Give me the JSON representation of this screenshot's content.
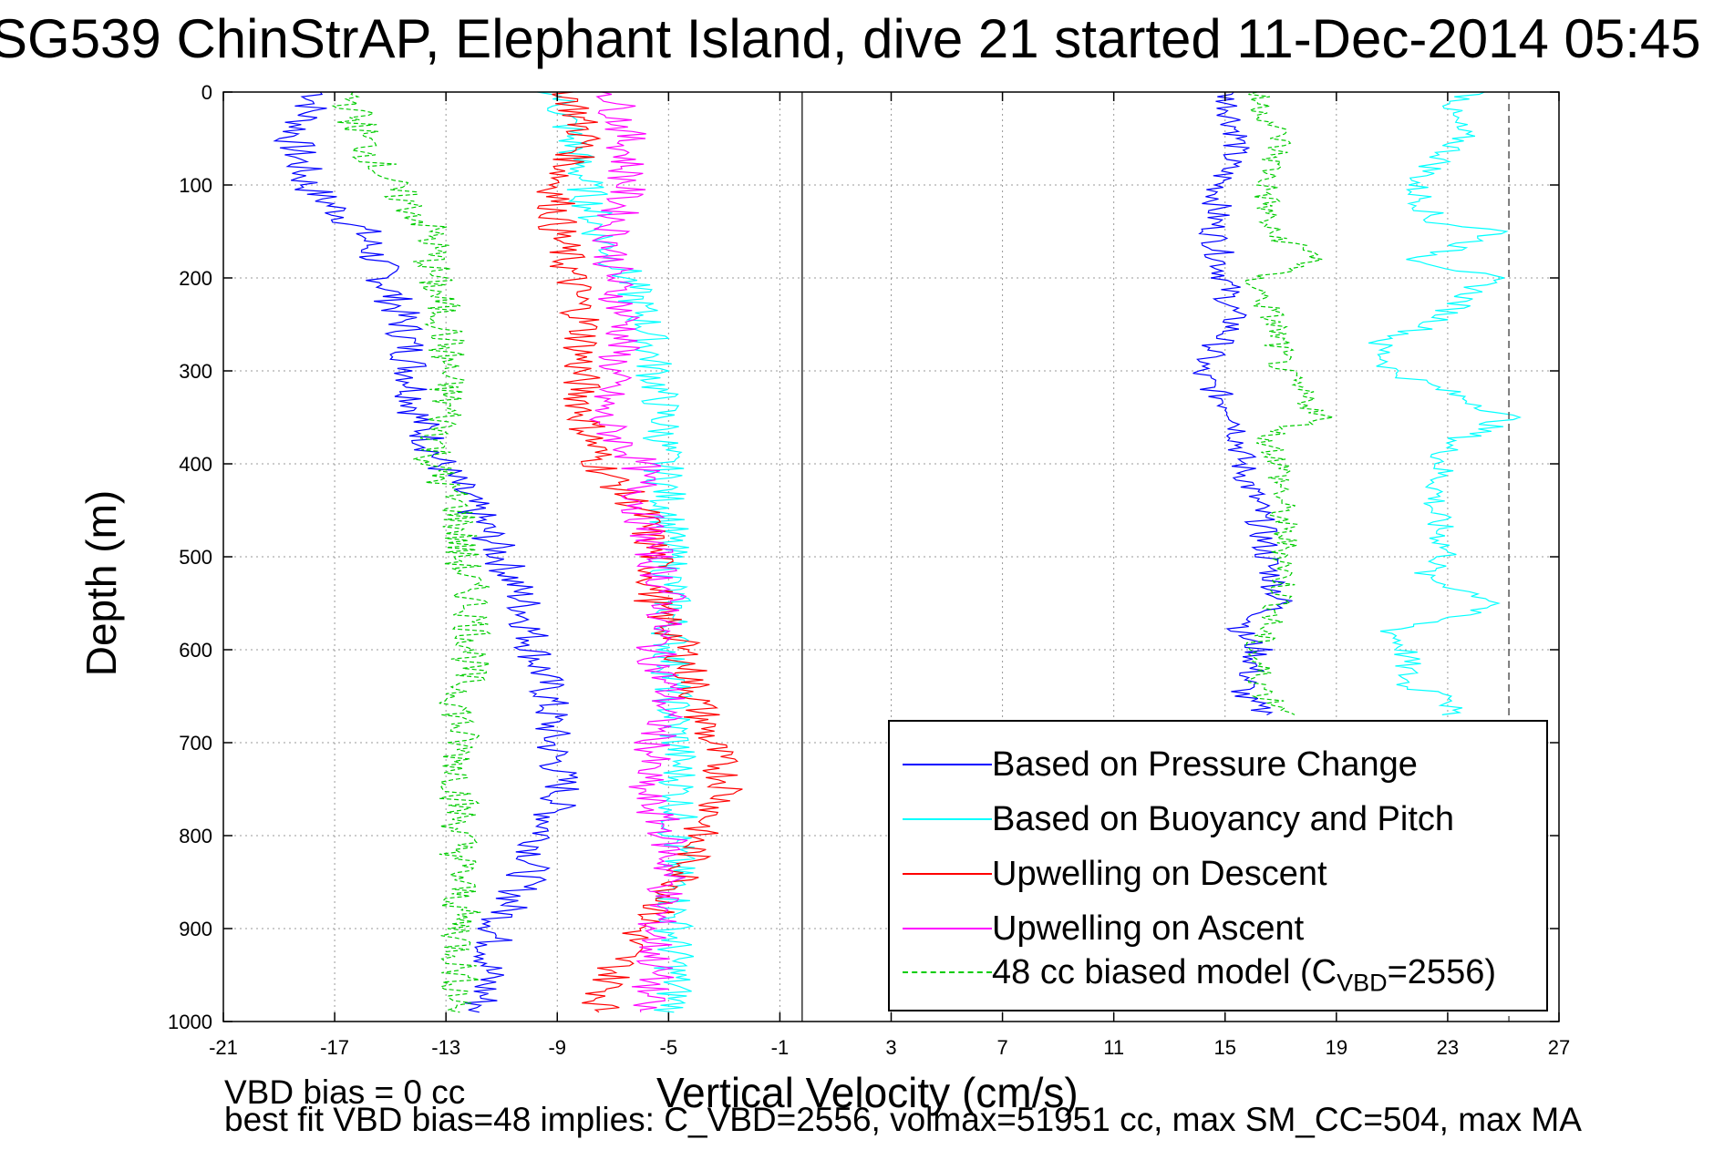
{
  "chart_data": {
    "type": "line",
    "title": "SG539 ChinStrAP, Elephant Island, dive 21 started 11-Dec-2014 05:45",
    "xlabel": "Vertical Velocity (cm/s)",
    "ylabel": "Depth (m)",
    "xlim": [
      -21,
      27
    ],
    "ylim": [
      1000,
      0
    ],
    "y_reversed": true,
    "xticks": [
      -21,
      -17,
      -13,
      -9,
      -5,
      -1,
      3,
      7,
      11,
      15,
      19,
      23,
      27
    ],
    "yticks": [
      0,
      100,
      200,
      300,
      400,
      500,
      600,
      700,
      800,
      900,
      1000
    ],
    "grid": true,
    "legend_position": "bottom-right",
    "reference_lines": {
      "solid_x": -0.2,
      "dashed_x": 25.2
    },
    "series": [
      {
        "name": "Based on Pressure Change",
        "color": "#0000ff",
        "panel": "descent",
        "depth": [
          0,
          50,
          100,
          150,
          200,
          250,
          300,
          350,
          400,
          450,
          500,
          550,
          600,
          650,
          700,
          750,
          800,
          850,
          900,
          950,
          990
        ],
        "velocity": [
          -17.5,
          -18.5,
          -18,
          -16,
          -15.2,
          -14.5,
          -14.2,
          -14,
          -13.2,
          -12,
          -11,
          -10.2,
          -9.8,
          -9.3,
          -9.2,
          -8.8,
          -9.5,
          -10.2,
          -11.2,
          -11.5,
          -11.8
        ]
      },
      {
        "name": "Based on Pressure Change",
        "color": "#0000ff",
        "panel": "ascent",
        "depth": [
          0,
          50,
          100,
          150,
          200,
          250,
          300,
          350,
          400,
          450,
          500,
          550,
          580,
          600,
          650,
          670
        ],
        "velocity": [
          15,
          15.5,
          14.8,
          14.6,
          15,
          15.3,
          14,
          15.5,
          15.6,
          16.2,
          16.5,
          17,
          15.5,
          16.2,
          15.6,
          16.5
        ]
      },
      {
        "name": "Based on Buoyancy and Pitch",
        "color": "#00ffff",
        "panel": "descent",
        "depth": [
          0,
          50,
          100,
          150,
          200,
          250,
          300,
          350,
          400,
          450,
          500,
          550,
          600,
          650,
          700,
          750,
          800,
          850,
          900,
          950,
          990
        ],
        "velocity": [
          -9,
          -8.5,
          -8,
          -7.5,
          -6.5,
          -5.8,
          -5.5,
          -5.2,
          -5.2,
          -5,
          -5,
          -4.9,
          -4.9,
          -4.9,
          -4.7,
          -4.6,
          -4.7,
          -4.8,
          -4.8,
          -4.8,
          -4.8
        ]
      },
      {
        "name": "Based on Buoyancy and Pitch",
        "color": "#00ffff",
        "panel": "ascent",
        "depth": [
          0,
          20,
          50,
          100,
          140,
          150,
          180,
          200,
          250,
          270,
          300,
          340,
          350,
          380,
          400,
          450,
          500,
          520,
          550,
          580,
          600,
          640,
          650,
          670
        ],
        "velocity": [
          24,
          23,
          23.5,
          21.8,
          22.5,
          25,
          22,
          24.5,
          22.5,
          20.5,
          21,
          24.5,
          25.2,
          23,
          22.8,
          22.5,
          23,
          22,
          25,
          21,
          21.5,
          21.5,
          23.5,
          22.8
        ]
      },
      {
        "name": "Upwelling on Descent",
        "color": "#ff0000",
        "panel": "descent",
        "depth": [
          0,
          50,
          100,
          150,
          200,
          250,
          300,
          350,
          400,
          450,
          500,
          550,
          600,
          650,
          700,
          750,
          800,
          850,
          900,
          950,
          990
        ],
        "velocity": [
          -8.5,
          -8,
          -9,
          -9,
          -8.5,
          -8,
          -8.2,
          -8,
          -7.5,
          -6,
          -5.5,
          -5.5,
          -4.5,
          -4,
          -3.5,
          -2.8,
          -4,
          -4.5,
          -6,
          -7,
          -7.5
        ]
      },
      {
        "name": "Upwelling on Ascent",
        "color": "#ff00ff",
        "panel": "descent",
        "depth": [
          0,
          50,
          100,
          150,
          200,
          250,
          300,
          350,
          400,
          450,
          500,
          550,
          600,
          650,
          700,
          750,
          800,
          850,
          900,
          950,
          990
        ],
        "velocity": [
          -7,
          -6.5,
          -6.5,
          -7,
          -7,
          -6.5,
          -7,
          -7.5,
          -6,
          -6,
          -5.5,
          -5,
          -5.5,
          -5,
          -5.5,
          -6,
          -5,
          -5,
          -5.5,
          -5.5,
          -6
        ]
      },
      {
        "name": "48 cc biased model (C_VBD=2556)",
        "color": "#00cc00",
        "panel": "descent",
        "depth": [
          0,
          50,
          100,
          150,
          200,
          250,
          300,
          350,
          400,
          450,
          500,
          550,
          600,
          650,
          700,
          750,
          800,
          850,
          900,
          950,
          990
        ],
        "velocity": [
          -16.5,
          -16,
          -15,
          -13.5,
          -13.5,
          -13,
          -13,
          -13,
          -13.5,
          -12.5,
          -12.5,
          -12,
          -12,
          -12.5,
          -12.5,
          -12.5,
          -12.5,
          -12.5,
          -12.5,
          -12.5,
          -12.5
        ]
      },
      {
        "name": "48 cc biased model (C_VBD=2556)",
        "color": "#00cc00",
        "panel": "ascent",
        "depth": [
          0,
          50,
          100,
          150,
          180,
          200,
          250,
          300,
          350,
          370,
          400,
          450,
          500,
          550,
          600,
          650,
          670
        ],
        "velocity": [
          16,
          17,
          16.5,
          16.5,
          18.5,
          16,
          16.8,
          17,
          18.5,
          16.5,
          17,
          17,
          17.2,
          17,
          16,
          16.5,
          17.5
        ]
      }
    ],
    "legend_entries": [
      {
        "label": "Based on Pressure Change",
        "color": "#0000ff",
        "style": "solid"
      },
      {
        "label": "Based on Buoyancy and Pitch",
        "color": "#00ffff",
        "style": "solid"
      },
      {
        "label": "Upwelling on Descent",
        "color": "#ff0000",
        "style": "solid"
      },
      {
        "label": "Upwelling on Ascent",
        "color": "#ff00ff",
        "style": "solid"
      },
      {
        "label_main": "48 cc biased model (C",
        "label_sub": "VBD",
        "label_tail": "=2556)",
        "color": "#00cc00",
        "style": "dashed"
      }
    ]
  },
  "annotations": {
    "vbd_bias": "VBD bias = 0 cc",
    "best_fit": "best fit VBD bias=48 implies: C_VBD=2556, volmax=51951 cc, max SM_CC=504, max MA"
  }
}
